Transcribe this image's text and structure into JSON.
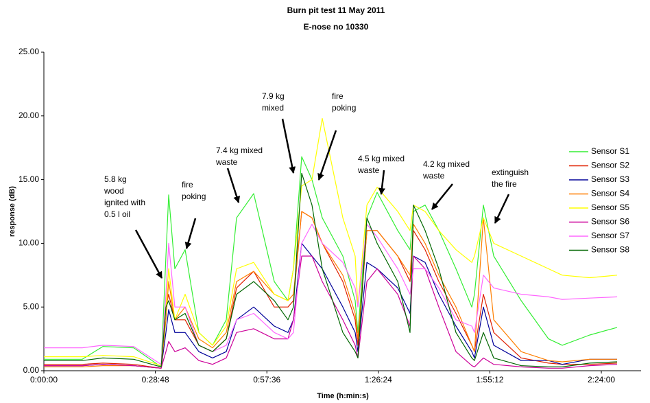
{
  "chart_data": {
    "type": "line",
    "title": "Burn pit test 11 May 2011",
    "subtitle": "E-nose no 10330",
    "x_label": "Time (h:min:s)",
    "y_label": "response (dB)",
    "xlim": [
      0,
      9256
    ],
    "ylim": [
      0,
      25
    ],
    "xticks": [
      {
        "value": 0,
        "label": "0:00:00"
      },
      {
        "value": 1728,
        "label": "0:28:48"
      },
      {
        "value": 3456,
        "label": "0:57:36"
      },
      {
        "value": 5184,
        "label": "1:26:24"
      },
      {
        "value": 6912,
        "label": "1:55:12"
      },
      {
        "value": 8640,
        "label": "2:24:00"
      }
    ],
    "yticks": [
      {
        "value": 0,
        "label": "0.00"
      },
      {
        "value": 5,
        "label": "5.00"
      },
      {
        "value": 10,
        "label": "10.00"
      },
      {
        "value": 15,
        "label": "15.00"
      },
      {
        "value": 20,
        "label": "20.00"
      },
      {
        "value": 25,
        "label": "25.00"
      }
    ],
    "legend": "right",
    "x": [
      0,
      595,
      914,
      1392,
      1817,
      1892,
      1934,
      2030,
      2189,
      2402,
      2614,
      2827,
      2986,
      3252,
      3571,
      3783,
      3868,
      3996,
      4155,
      4315,
      4633,
      4825,
      4867,
      5006,
      5165,
      5484,
      5675,
      5728,
      5909,
      6121,
      6387,
      6632,
      6674,
      6812,
      6972,
      7397,
      7821,
      8034,
      8459,
      8884
    ],
    "series": [
      {
        "name": "Sensor S1",
        "color": "#33ee33",
        "values": [
          0.9,
          0.9,
          1.9,
          1.8,
          0.3,
          9,
          13.8,
          8,
          9.5,
          3,
          2,
          4,
          12,
          13.9,
          7,
          5.5,
          8,
          16.8,
          15,
          12,
          9,
          5.5,
          3,
          12,
          14,
          11,
          9.5,
          12.5,
          13,
          11,
          8,
          5,
          6,
          13,
          9,
          5.5,
          2.5,
          2,
          2.8,
          3.4
        ]
      },
      {
        "name": "Sensor S2",
        "color": "#e02000",
        "values": [
          0.5,
          0.5,
          0.6,
          0.5,
          0.2,
          5,
          6,
          4,
          4,
          2,
          1.5,
          2.5,
          6.5,
          7.8,
          5,
          5,
          5.5,
          12.5,
          12,
          10,
          7,
          4,
          2,
          11,
          11,
          9,
          7,
          11,
          9.5,
          7,
          4.5,
          2,
          1.5,
          6,
          3,
          1,
          0.6,
          0.5,
          0.5,
          0.6
        ]
      },
      {
        "name": "Sensor S3",
        "color": "#000099",
        "values": [
          0.4,
          0.4,
          0.5,
          0.4,
          0.2,
          3,
          4.8,
          3,
          3,
          1.5,
          1,
          1.5,
          4,
          5,
          3.5,
          3,
          4,
          10,
          9,
          8,
          5,
          3,
          1.5,
          8.5,
          8,
          6.5,
          4.5,
          9,
          8.5,
          6,
          3.5,
          1.5,
          1,
          5,
          2,
          0.8,
          0.8,
          0.5,
          0.9,
          0.9
        ]
      },
      {
        "name": "Sensor S4",
        "color": "#ff7f00",
        "values": [
          0.3,
          0.3,
          0.4,
          0.4,
          0.2,
          4,
          7,
          4,
          5,
          2.5,
          1.8,
          3,
          7,
          7.8,
          6,
          5.5,
          6,
          12.5,
          12,
          10,
          7.5,
          4.5,
          2.5,
          11,
          11,
          9,
          7.5,
          11.5,
          10,
          7.5,
          5,
          2,
          1.5,
          12,
          4,
          1.5,
          0.8,
          0.7,
          0.9,
          0.9
        ]
      },
      {
        "name": "Sensor S5",
        "color": "#ffff00",
        "values": [
          1.1,
          1.1,
          1.2,
          1.1,
          0.4,
          5,
          8,
          4,
          6,
          3,
          2,
          3.5,
          8,
          8.5,
          6,
          5.5,
          8,
          14.5,
          15,
          19.8,
          12,
          9,
          5,
          13,
          14.4,
          12.5,
          11,
          13,
          12.5,
          11,
          9.5,
          8.5,
          9,
          12,
          10,
          9,
          8,
          7.5,
          7.3,
          7.5
        ]
      },
      {
        "name": "Sensor S6",
        "color": "#cc0099",
        "values": [
          0.4,
          0.4,
          0.5,
          0.4,
          0.2,
          1.5,
          2.3,
          1.5,
          1.8,
          0.8,
          0.5,
          1,
          3,
          3.3,
          2.5,
          2.5,
          4,
          9,
          9,
          7,
          4,
          2,
          1,
          7,
          8,
          6,
          3.5,
          9,
          8,
          5,
          1.5,
          0.4,
          0.3,
          1,
          0.5,
          0.3,
          0.2,
          0.2,
          0.4,
          0.5
        ]
      },
      {
        "name": "Sensor S7",
        "color": "#ff66ff",
        "values": [
          1.8,
          1.8,
          2,
          1.9,
          0.5,
          6,
          10,
          5,
          5,
          2,
          1.5,
          2,
          4,
          4.5,
          3,
          2.5,
          3,
          10,
          11.5,
          10,
          8.5,
          6.5,
          5,
          11.5,
          10.5,
          8,
          6,
          8,
          8,
          6.5,
          4,
          3.5,
          3,
          7.5,
          6.5,
          6,
          5.8,
          5.6,
          5.7,
          5.8
        ]
      },
      {
        "name": "Sensor S8",
        "color": "#006600",
        "values": [
          0.8,
          0.8,
          1,
          0.9,
          0.3,
          5,
          5.5,
          4,
          4.5,
          2,
          1.5,
          2.5,
          6,
          7,
          5.5,
          4,
          5,
          15.5,
          13,
          8,
          3,
          1.5,
          1,
          12,
          10,
          7,
          3,
          13,
          11,
          8,
          3,
          1,
          0.8,
          3,
          1,
          0.4,
          0.3,
          0.3,
          0.6,
          0.7
        ]
      }
    ],
    "annotations": [
      {
        "lines": [
          "5.8 kg",
          "wood",
          "ignited with",
          "0.5 l oil"
        ]
      },
      {
        "lines": [
          "fire",
          "poking"
        ]
      },
      {
        "lines": [
          "7.4 kg mixed",
          "waste"
        ]
      },
      {
        "lines": [
          "7.9 kg",
          "mixed"
        ]
      },
      {
        "lines": [
          "fire",
          "poking"
        ]
      },
      {
        "lines": [
          "4.5 kg mixed",
          "waste"
        ]
      },
      {
        "lines": [
          "4.2 kg mixed",
          "waste"
        ]
      },
      {
        "lines": [
          "extinguish",
          "the fire"
        ]
      }
    ]
  }
}
